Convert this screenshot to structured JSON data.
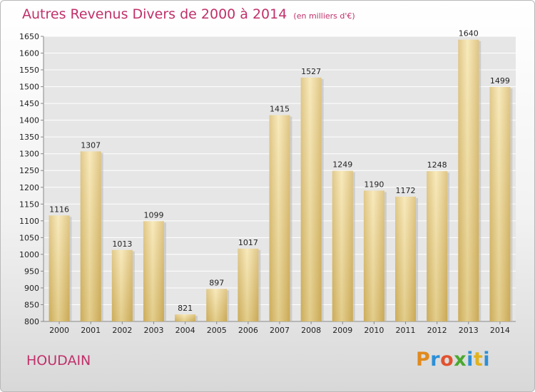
{
  "chart_data": {
    "type": "bar",
    "title": "Autres Revenus Divers de 2000 à 2014",
    "subtitle": "(en milliers d'€)",
    "categories": [
      "2000",
      "2001",
      "2002",
      "2003",
      "2004",
      "2005",
      "2006",
      "2007",
      "2008",
      "2009",
      "2010",
      "2011",
      "2012",
      "2013",
      "2014"
    ],
    "values": [
      1116,
      1307,
      1013,
      1099,
      821,
      897,
      1017,
      1415,
      1527,
      1249,
      1190,
      1172,
      1248,
      1640,
      1499
    ],
    "ylim": [
      800,
      1650
    ],
    "yticks": [
      800,
      850,
      900,
      950,
      1000,
      1050,
      1100,
      1150,
      1200,
      1250,
      1300,
      1350,
      1400,
      1450,
      1500,
      1550,
      1600,
      1650
    ],
    "grid": true,
    "bar_color": "#e9cf7f"
  },
  "footer": {
    "city": "HOUDAIN",
    "logo": "Proxiti"
  }
}
